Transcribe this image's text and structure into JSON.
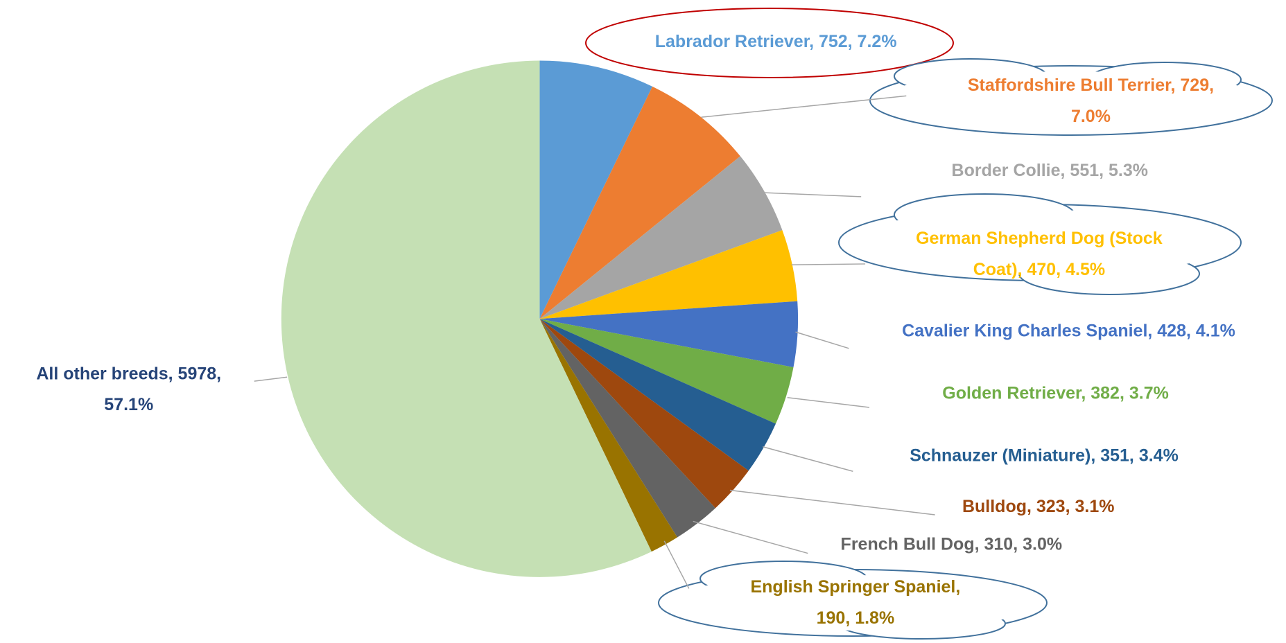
{
  "chart_data": {
    "type": "pie",
    "values": [
      752,
      729,
      551,
      470,
      428,
      382,
      351,
      323,
      310,
      190,
      5978
    ],
    "value_labels": [
      [
        "Labrador Retriever, 752, 7.2%"
      ],
      [
        "Staffordshire Bull Terrier, 729,",
        "7.0%"
      ],
      [
        "Border Collie, 551, 5.3%"
      ],
      [
        "German Shepherd Dog (Stock",
        "Coat), 470, 4.5%"
      ],
      [
        "Cavalier King Charles Spaniel, 428, 4.1%"
      ],
      [
        "Golden Retriever, 382, 3.7%"
      ],
      [
        "Schnauzer (Miniature), 351, 3.4%"
      ],
      [
        "Bulldog, 323, 3.1%"
      ],
      [
        "French Bull Dog, 310, 3.0%"
      ],
      [
        "English Springer Spaniel,",
        "190, 1.8%"
      ],
      [
        "All other breeds, 5978,",
        "57.1%"
      ]
    ],
    "colors": [
      "#5b9bd5",
      "#ed7d31",
      "#a5a5a5",
      "#ffc000",
      "#4472c4",
      "#70ad47",
      "#255e91",
      "#9e480e",
      "#636363",
      "#997300",
      "#c5e0b4"
    ],
    "label_colors": [
      "#5b9bd5",
      "#ed7d31",
      "#a5a5a5",
      "#ffc000",
      "#4472c4",
      "#70ad47",
      "#255e91",
      "#9e480e",
      "#636363",
      "#997300",
      "#264478"
    ]
  }
}
